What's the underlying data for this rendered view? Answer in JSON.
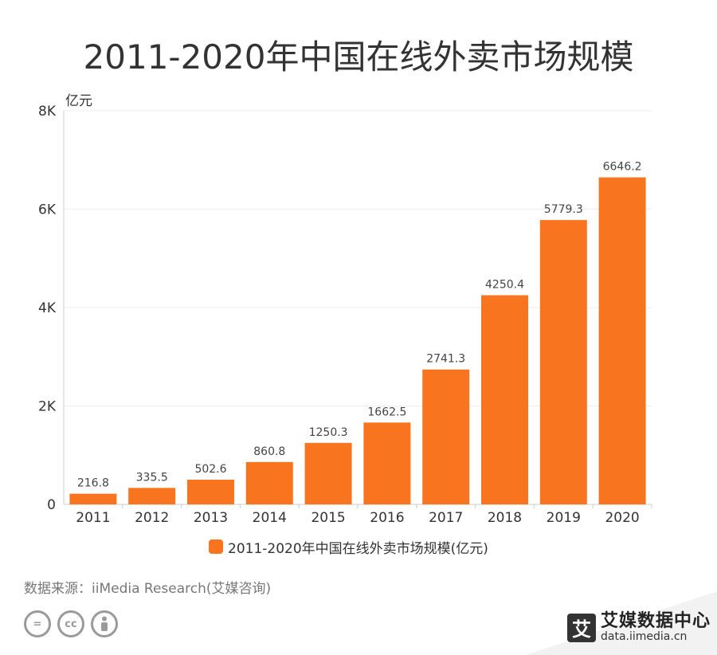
{
  "title": "2011-2020年中国在线外卖市场规模",
  "source": "数据来源：iiMedia Research(艾媒咨询)",
  "brand": {
    "name": "艾媒数据中心",
    "url": "data.iimedia.cn",
    "logo_char": "艾"
  },
  "license_icons": [
    "equals-icon",
    "cc-icon",
    "person-icon"
  ],
  "colors": {
    "bar": "#f9741f",
    "axis": "#cccccc",
    "grid": "#eeeeee"
  },
  "chart_data": {
    "type": "bar",
    "ylabel": "亿元",
    "ylim": [
      0,
      8000
    ],
    "yticks": [
      0,
      2000,
      4000,
      6000,
      8000
    ],
    "ytick_labels": [
      "0",
      "2K",
      "4K",
      "6K",
      "8K"
    ],
    "categories": [
      "2011",
      "2012",
      "2013",
      "2014",
      "2015",
      "2016",
      "2017",
      "2018",
      "2019",
      "2020"
    ],
    "series": [
      {
        "name": "2011-2020年中国在线外卖市场规模(亿元)",
        "values": [
          216.8,
          335.5,
          502.6,
          860.8,
          1250.3,
          1662.5,
          2741.3,
          4250.4,
          5779.3,
          6646.2
        ],
        "labels": [
          "216.8",
          "335.5",
          "502.6",
          "860.8",
          "1250.3",
          "1662.5",
          "2741.3",
          "4250.4",
          "5779.3",
          "6646.2"
        ]
      }
    ],
    "legend_position": "bottom",
    "grid": true
  }
}
